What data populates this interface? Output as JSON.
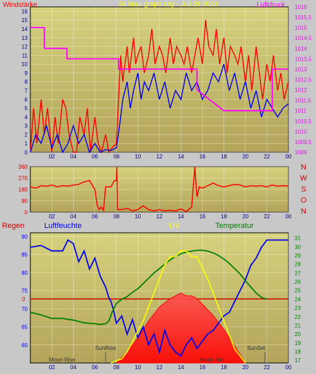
{
  "title": "24 hour graph day - Juli 29 2016",
  "colors": {
    "bg": "#c8c8c8",
    "plot_top": "#d6d27e",
    "plot_bottom": "#b3a45a",
    "red": "#ff0000",
    "blue": "#0000ee",
    "magenta": "#ff00ff",
    "green": "#008000",
    "yellow": "#ffff00",
    "grid": "#ffffff",
    "dir_label": "#cc0000"
  },
  "chart_data": [
    {
      "type": "line",
      "left_label": "Windstärke",
      "right_label": "Luftdruck",
      "x_ticks": [
        "02",
        "04",
        "06",
        "08",
        "10",
        "12",
        "14",
        "16",
        "18",
        "20",
        "22",
        "00"
      ],
      "y_left_ticks": [
        "0",
        "1",
        "2",
        "3",
        "4",
        "5",
        "6",
        "7",
        "8",
        "9",
        "10",
        "11",
        "12",
        "13",
        "14",
        "15",
        "16"
      ],
      "y_right_ticks": [
        "1009",
        "1009,5",
        "1010",
        "1010,5",
        "1011",
        "1011,5",
        "1012",
        "1012,5",
        "1013",
        "1013,5",
        "1014",
        "1014,5",
        "1015",
        "1015,5",
        "1016"
      ],
      "ylim_left": [
        0,
        16.5
      ],
      "ylim_right": [
        1009,
        1016
      ],
      "series": [
        {
          "color": "#ff0000",
          "axis": "left",
          "x": [
            0,
            0.3,
            0.6,
            1,
            1.3,
            1.6,
            2,
            2.3,
            2.6,
            3,
            3.3,
            3.6,
            4,
            4.3,
            4.6,
            5,
            5.3,
            5.6,
            6,
            6.3,
            6.6,
            7,
            7.3,
            7.6,
            8,
            8.2,
            8.4,
            8.6,
            8.8,
            9,
            9.2,
            9.4,
            9.6,
            9.8,
            10,
            10.3,
            10.6,
            11,
            11.3,
            11.6,
            12,
            12.3,
            12.6,
            13,
            13.3,
            13.6,
            14,
            14.3,
            14.6,
            15,
            15.3,
            15.6,
            16,
            16.3,
            16.6,
            17,
            17.3,
            17.6,
            18,
            18.3,
            18.6,
            19,
            19.3,
            19.6,
            20,
            20.3,
            20.6,
            21,
            21.3,
            21.6,
            22,
            22.3,
            22.6,
            23,
            23.3,
            23.6,
            24
          ],
          "values": [
            0,
            5,
            1,
            6,
            2,
            5,
            0,
            4,
            1,
            6,
            5,
            2,
            0,
            0,
            4,
            2,
            5,
            0,
            4,
            1,
            0,
            2,
            0,
            0.5,
            1,
            6,
            11,
            8,
            10,
            12,
            9,
            11,
            13,
            10,
            11,
            12,
            9,
            11,
            14,
            10,
            12,
            11,
            9,
            13,
            10,
            12,
            11,
            10,
            12,
            9,
            11,
            13,
            10,
            15,
            12,
            11,
            14,
            10,
            13,
            9,
            12,
            11,
            10,
            12,
            8,
            11,
            7,
            12,
            9,
            6,
            10,
            8,
            11,
            7,
            9,
            6,
            8
          ]
        },
        {
          "color": "#0000ee",
          "axis": "left",
          "x": [
            0,
            0.5,
            1,
            1.5,
            2,
            2.5,
            3,
            3.5,
            4,
            4.5,
            5,
            5.5,
            6,
            6.5,
            7,
            7.5,
            8,
            8.3,
            8.6,
            9,
            9.3,
            9.6,
            10,
            10.3,
            10.6,
            11,
            11.5,
            12,
            12.5,
            13,
            13.5,
            14,
            14.5,
            15,
            15.5,
            16,
            16.5,
            17,
            17.5,
            18,
            18.5,
            19,
            19.5,
            20,
            20.5,
            21,
            21.5,
            22,
            22.5,
            23,
            23.5,
            24
          ],
          "values": [
            0,
            2,
            1,
            3,
            0.5,
            2,
            0,
            1,
            3,
            1,
            2,
            0,
            1,
            0,
            0.3,
            0.2,
            0.5,
            3,
            6,
            8,
            5,
            7,
            9,
            6,
            8,
            7,
            9,
            6,
            8,
            5,
            7,
            6,
            9,
            7,
            8,
            6,
            7,
            9,
            8,
            10,
            7,
            9,
            6,
            8,
            5,
            7,
            4,
            6,
            5,
            4,
            5,
            5.5
          ]
        },
        {
          "color": "#ff00ff",
          "axis": "right",
          "x": [
            0,
            1.3,
            1.3,
            2,
            3.4,
            3.4,
            8,
            8.2,
            8.2,
            15.5,
            15.5,
            18,
            18.5,
            19,
            20,
            21.5,
            22,
            22.5,
            22.5,
            24
          ],
          "values": [
            1015,
            1015,
            1014,
            1014,
            1014,
            1013.5,
            1013.5,
            1013.5,
            1013,
            1013,
            1012,
            1011,
            1011,
            1011,
            1011,
            1011,
            1011,
            1011,
            1013,
            1013
          ]
        }
      ]
    },
    {
      "type": "line",
      "y_ticks": [
        "0",
        "90",
        "180",
        "270",
        "360"
      ],
      "ylim": [
        0,
        360
      ],
      "direction_labels": [
        "N",
        "W",
        "S",
        "O",
        "N"
      ],
      "series": [
        {
          "color": "#ff0000",
          "x": [
            0,
            0.5,
            1,
            1.5,
            2,
            2.5,
            3,
            3.5,
            4,
            4.5,
            5,
            5.5,
            6,
            6.2,
            6.4,
            6.6,
            6.8,
            7,
            7.5,
            7.8,
            8,
            8.05,
            8.1,
            8.5,
            9,
            9.5,
            10,
            10.5,
            11,
            11.5,
            12,
            12.5,
            13,
            13.5,
            14,
            14.5,
            15,
            15.3,
            15.5,
            15.7,
            16,
            16.5,
            17,
            17.5,
            18,
            18.5,
            19,
            19.5,
            20,
            20.5,
            21,
            21.5,
            22,
            22.5,
            23,
            23.5,
            24
          ],
          "values": [
            200,
            190,
            210,
            205,
            215,
            200,
            210,
            205,
            215,
            220,
            240,
            250,
            180,
            60,
            20,
            40,
            15,
            200,
            200,
            250,
            250,
            360,
            20,
            20,
            30,
            10,
            20,
            50,
            20,
            10,
            20,
            10,
            15,
            10,
            25,
            5,
            40,
            360,
            120,
            200,
            190,
            210,
            230,
            210,
            200,
            210,
            220,
            215,
            200,
            210,
            205,
            210,
            200,
            215,
            205,
            210,
            205
          ]
        }
      ]
    },
    {
      "type": "line",
      "labels": {
        "rain": "Regen",
        "humidity": "Luftfeuchte",
        "uv": "UV",
        "temperature": "Temperatur"
      },
      "y_left_ticks": [
        "60",
        "65",
        "70",
        "75",
        "80",
        "85",
        "90"
      ],
      "y_right_ticks": [
        "17",
        "18",
        "19",
        "20",
        "21",
        "22",
        "23",
        "24",
        "25",
        "26",
        "27",
        "28",
        "29",
        "30",
        "31"
      ],
      "rain_tick": "0",
      "ylim_left": [
        55,
        91
      ],
      "ylim_right": [
        16.7,
        31.6
      ],
      "annotations": {
        "sunrise": "SunRise",
        "sunset": "SunSet",
        "moonrise": "Moon Rise",
        "moonset": "Moon Set"
      },
      "series": [
        {
          "color": "#0000ee",
          "axis": "left",
          "x": [
            0,
            1,
            2,
            3,
            3.5,
            4,
            4.5,
            5,
            5.5,
            6,
            6.5,
            7,
            7.3,
            7.5,
            7.7,
            8,
            8.5,
            9,
            9.5,
            10,
            10.5,
            11,
            11.5,
            12,
            12.5,
            13,
            13.5,
            14,
            14.5,
            15,
            15.5,
            16,
            16.5,
            17,
            17.5,
            18,
            18.5,
            19,
            19.5,
            20,
            20.5,
            21,
            21.5,
            22,
            22.5,
            23,
            24
          ],
          "values": [
            87,
            87.5,
            86,
            86,
            89,
            88,
            83,
            86,
            81,
            84,
            79,
            76,
            73,
            72,
            70,
            66,
            68,
            63,
            67,
            62,
            65,
            60,
            63,
            58,
            64,
            60,
            58,
            57,
            60,
            62,
            59,
            61,
            63,
            64,
            66,
            68,
            69,
            72,
            75,
            78,
            82,
            84,
            87,
            89,
            89,
            89,
            89
          ]
        },
        {
          "color": "#008000",
          "axis": "right",
          "x": [
            0,
            1,
            2,
            3,
            4,
            5,
            6,
            6.5,
            7,
            7.3,
            7.6,
            8,
            8.5,
            9,
            9.5,
            10,
            10.5,
            11,
            11.5,
            12,
            12.5,
            13,
            13.5,
            14,
            14.5,
            15,
            15.5,
            16,
            16.5,
            17,
            17.5,
            18,
            18.5,
            19,
            19.5,
            20,
            20.5,
            21,
            21.5,
            22
          ],
          "values": [
            22.5,
            22.2,
            21.8,
            21.8,
            21.6,
            21.3,
            21.2,
            21.1,
            21.2,
            21.5,
            22.5,
            23.5,
            24,
            24.3,
            24.8,
            25.2,
            25.8,
            26.4,
            27,
            27.5,
            28,
            28.5,
            28.9,
            29.2,
            29.4,
            29.5,
            29.6,
            29.6,
            29.5,
            29.3,
            29.0,
            28.6,
            28.1,
            27.5,
            26.9,
            26.1,
            25.4,
            24.7,
            24.2,
            24.0
          ]
        },
        {
          "color": "#ffff00",
          "axis": "uv",
          "x": [
            7.5,
            8.5,
            9,
            9.5,
            10,
            10.5,
            11,
            11.5,
            12,
            12.5,
            13,
            13.5,
            14,
            14.5,
            15,
            15.5,
            16,
            16.5,
            17,
            17.5,
            18,
            18.5,
            19,
            20
          ],
          "values": [
            0,
            0.3,
            0.8,
            1.5,
            2.3,
            3,
            4,
            5,
            6,
            7,
            7.6,
            7.6,
            8,
            8,
            7.6,
            7.6,
            6.8,
            6,
            5,
            4,
            3,
            2,
            1,
            0
          ]
        },
        {
          "color": "#ff0000",
          "axis": "uv",
          "x": [
            8,
            9,
            10,
            11,
            12,
            13,
            13.5,
            14,
            14.5,
            15,
            15.5,
            16,
            17,
            18,
            19,
            20
          ],
          "values": [
            0,
            0.8,
            1.8,
            3,
            4,
            4.6,
            4.8,
            5,
            4.8,
            4.8,
            4.6,
            4.2,
            3.4,
            2.4,
            1.2,
            0
          ]
        }
      ]
    }
  ]
}
